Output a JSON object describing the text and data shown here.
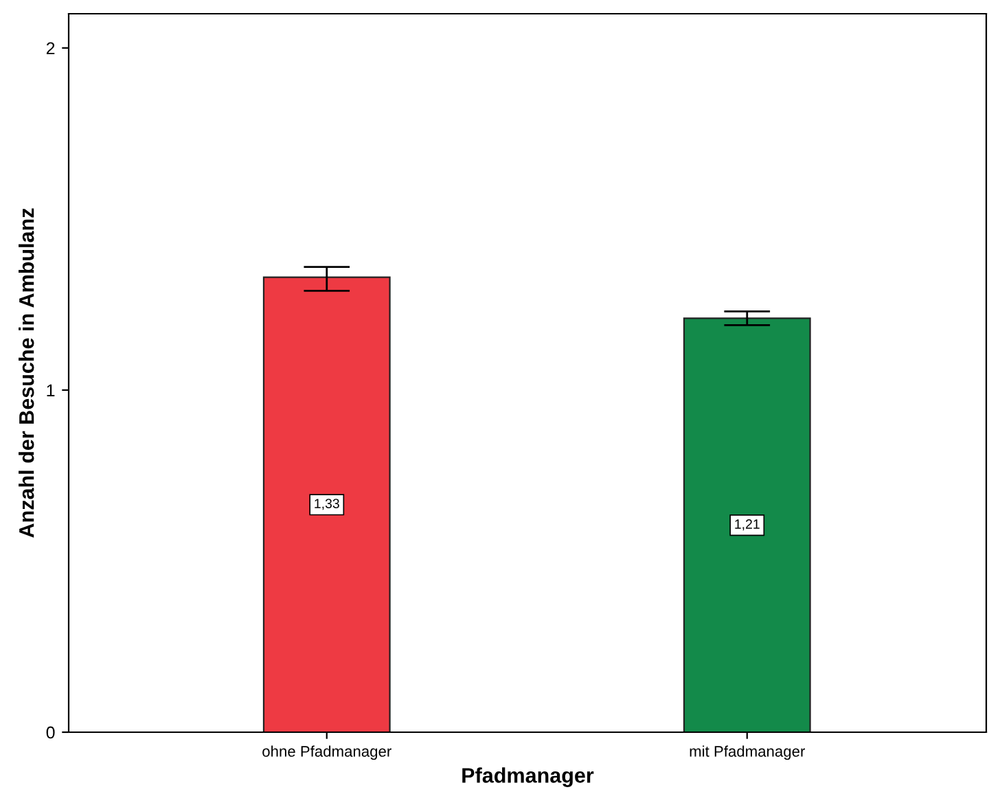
{
  "chart_data": {
    "type": "bar",
    "xlabel": "Pfadmanager",
    "ylabel": "Anzahl der Besuche in Ambulanz",
    "categories": [
      "ohne Pfadmanager",
      "mit Pfadmanager"
    ],
    "values": [
      1.33,
      1.21
    ],
    "colors": [
      "#ee3a43",
      "#138a4a"
    ],
    "errors": [
      [
        1.29,
        1.36
      ],
      [
        1.19,
        1.23
      ]
    ],
    "value_labels": [
      "1,33",
      "1,21"
    ],
    "ylim": [
      0,
      2.1
    ],
    "yticks": [
      0,
      1,
      2
    ],
    "grid": false,
    "legend": false
  }
}
